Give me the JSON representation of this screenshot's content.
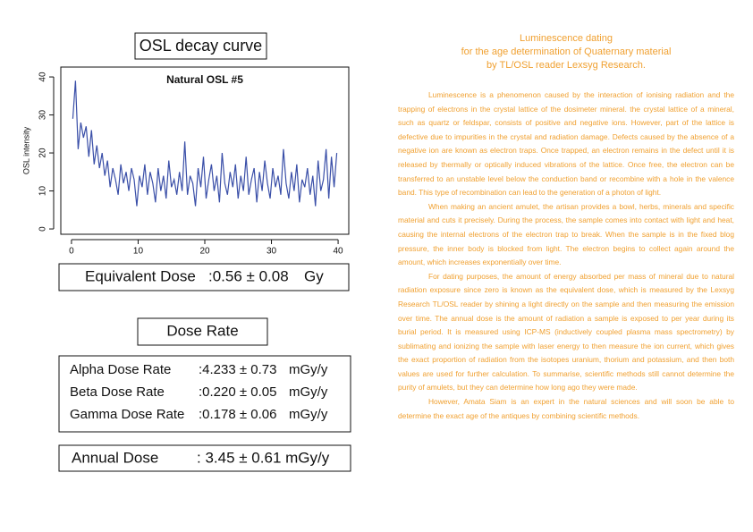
{
  "chart_data": {
    "type": "line",
    "title": "Natural OSL #5",
    "ylabel": "OSL intensity",
    "x": [
      0.2,
      0.6,
      1.0,
      1.4,
      1.8,
      2.2,
      2.6,
      3.0,
      3.4,
      3.8,
      4.2,
      4.6,
      5.0,
      5.4,
      5.8,
      6.2,
      6.6,
      7.0,
      7.4,
      7.8,
      8.2,
      8.6,
      9.0,
      9.4,
      9.8,
      10.2,
      10.6,
      11.0,
      11.4,
      11.8,
      12.2,
      12.6,
      13.0,
      13.4,
      13.8,
      14.2,
      14.6,
      15.0,
      15.4,
      15.8,
      16.2,
      16.6,
      17.0,
      17.4,
      17.8,
      18.2,
      18.6,
      19.0,
      19.4,
      19.8,
      20.2,
      20.6,
      21.0,
      21.4,
      21.8,
      22.2,
      22.6,
      23.0,
      23.4,
      23.8,
      24.2,
      24.6,
      25.0,
      25.4,
      25.8,
      26.2,
      26.6,
      27.0,
      27.4,
      27.8,
      28.2,
      28.6,
      29.0,
      29.4,
      29.8,
      30.2,
      30.6,
      31.0,
      31.4,
      31.8,
      32.2,
      32.6,
      33.0,
      33.4,
      33.8,
      34.2,
      34.6,
      35.0,
      35.4,
      35.8,
      36.2,
      36.6,
      37.0,
      37.4,
      37.8,
      38.2,
      38.6,
      39.0,
      39.4,
      39.8
    ],
    "values": [
      29,
      39,
      21,
      28,
      24,
      27,
      19,
      26,
      17,
      22,
      16,
      20,
      14,
      18,
      11,
      16,
      13,
      9,
      17,
      12,
      15,
      10,
      16,
      13,
      6,
      14,
      11,
      17,
      9,
      15,
      12,
      7,
      16,
      10,
      14,
      8,
      18,
      11,
      13,
      9,
      15,
      10,
      23,
      9,
      14,
      12,
      6,
      16,
      11,
      19,
      8,
      13,
      17,
      10,
      14,
      7,
      20,
      12,
      9,
      15,
      11,
      17,
      8,
      14,
      10,
      19,
      9,
      13,
      16,
      7,
      15,
      10,
      18,
      12,
      8,
      16,
      11,
      14,
      9,
      21,
      12,
      8,
      15,
      10,
      17,
      7,
      13,
      11,
      16,
      9,
      14,
      6,
      18,
      10,
      13,
      21,
      8,
      19,
      11,
      20
    ],
    "color": "#3a4fa8",
    "xlim": [
      -1.6,
      41.6
    ],
    "ylim": [
      -1.4,
      42.6
    ],
    "xticks": [
      0,
      10,
      20,
      30,
      40
    ],
    "yticks": [
      0,
      10,
      20,
      30,
      40
    ]
  },
  "left": {
    "osl_title": "OSL decay curve",
    "equivalent_dose": {
      "label": "Equivalent Dose",
      "value": ":0.56 ± 0.08",
      "unit": "Gy"
    },
    "dose_rate_title": "Dose Rate",
    "dose_rates": [
      {
        "label": "Alpha Dose Rate",
        "value": ":4.233 ± 0.73",
        "unit": "mGy/y"
      },
      {
        "label": "Beta Dose Rate",
        "value": ":0.220 ± 0.05",
        "unit": "mGy/y"
      },
      {
        "label": "Gamma Dose Rate",
        "value": ":0.178 ± 0.06",
        "unit": "mGy/y"
      }
    ],
    "annual_dose": {
      "label": "Annual Dose",
      "value": ": 3.45 ± 0.61 mGy/y"
    }
  },
  "article": {
    "title": [
      "Luminescence dating",
      "for the age determination of Quaternary material",
      "by TL/OSL reader Lexsyg Research."
    ],
    "paragraphs": [
      "Luminescence is a phenomenon caused by the interaction of ionising radiation and the trapping of electrons in the crystal lattice of the dosimeter mineral. the crystal lattice of a mineral, such as quartz or feldspar, consists of positive and negative ions. However, part of the lattice is defective due to impurities in the crystal and radiation damage. Defects caused by the absence of a negative ion are known as electron traps. Once trapped, an electron remains in the defect until it is released by thermally or optically induced vibrations of the lattice. Once free, the electron can be transferred to an unstable level below the conduction band or recombine with a hole in the valence band. This type of recombination can lead to the generation of a photon of light.",
      "When making an ancient amulet, the artisan provides a bowl, herbs, minerals and specific material and cuts it precisely. During the process, the sample comes into contact with light and heat, causing the internal electrons of the electron trap to break. When the sample is in the fixed blog pressure, the inner body is blocked from light. The electron begins to collect again around the amount, which increases exponentially over time.",
      "For dating purposes, the amount of energy absorbed per mass of mineral due to natural radiation exposure since zero is known as the equivalent dose, which is measured by the Lexsyg Research TL/OSL reader by shining a light directly on the sample and then measuring the emission over time. The annual dose is the amount of radiation a sample is exposed to per year during its burial period. It is measured using ICP-MS (inductively coupled plasma mass spectrometry) by sublimating and ionizing the sample with laser energy to then measure the ion current, which gives the exact proportion of radiation from the isotopes uranium, thorium and potassium, and then both values are used for further calculation. To summarise, scientific methods still cannot determine the purity of amulets, but they can determine how long ago they were made.",
      "However, Amata Siam is an expert in the natural sciences and will soon be able to determine the exact age of the antiques by combining scientific methods."
    ]
  }
}
